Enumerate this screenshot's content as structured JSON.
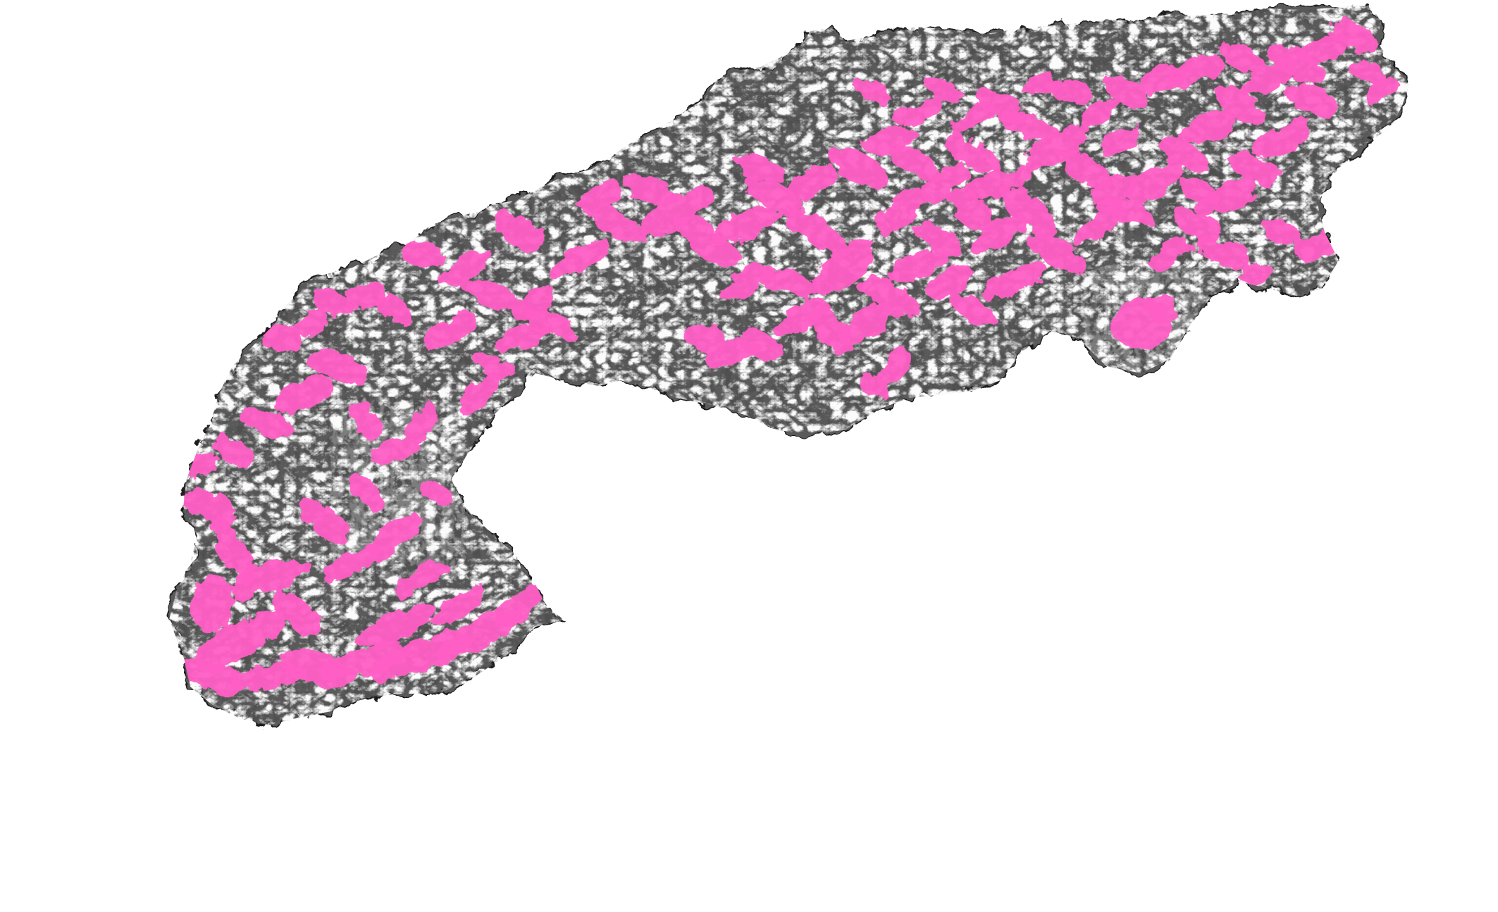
{
  "map": {
    "layers": {
      "relief": {
        "icon": "hillshade-relief",
        "colors": {
          "dark": "#1e1e1e",
          "mid": "#5a5a5a",
          "light": "#9a9a9a",
          "snow": "#f6f6f6",
          "plain": "#6e6e6e"
        }
      },
      "highlight": {
        "icon": "highlighted-areas",
        "color": "#ff5ec4",
        "opacity": 0.95
      }
    },
    "background": "#ffffff"
  }
}
